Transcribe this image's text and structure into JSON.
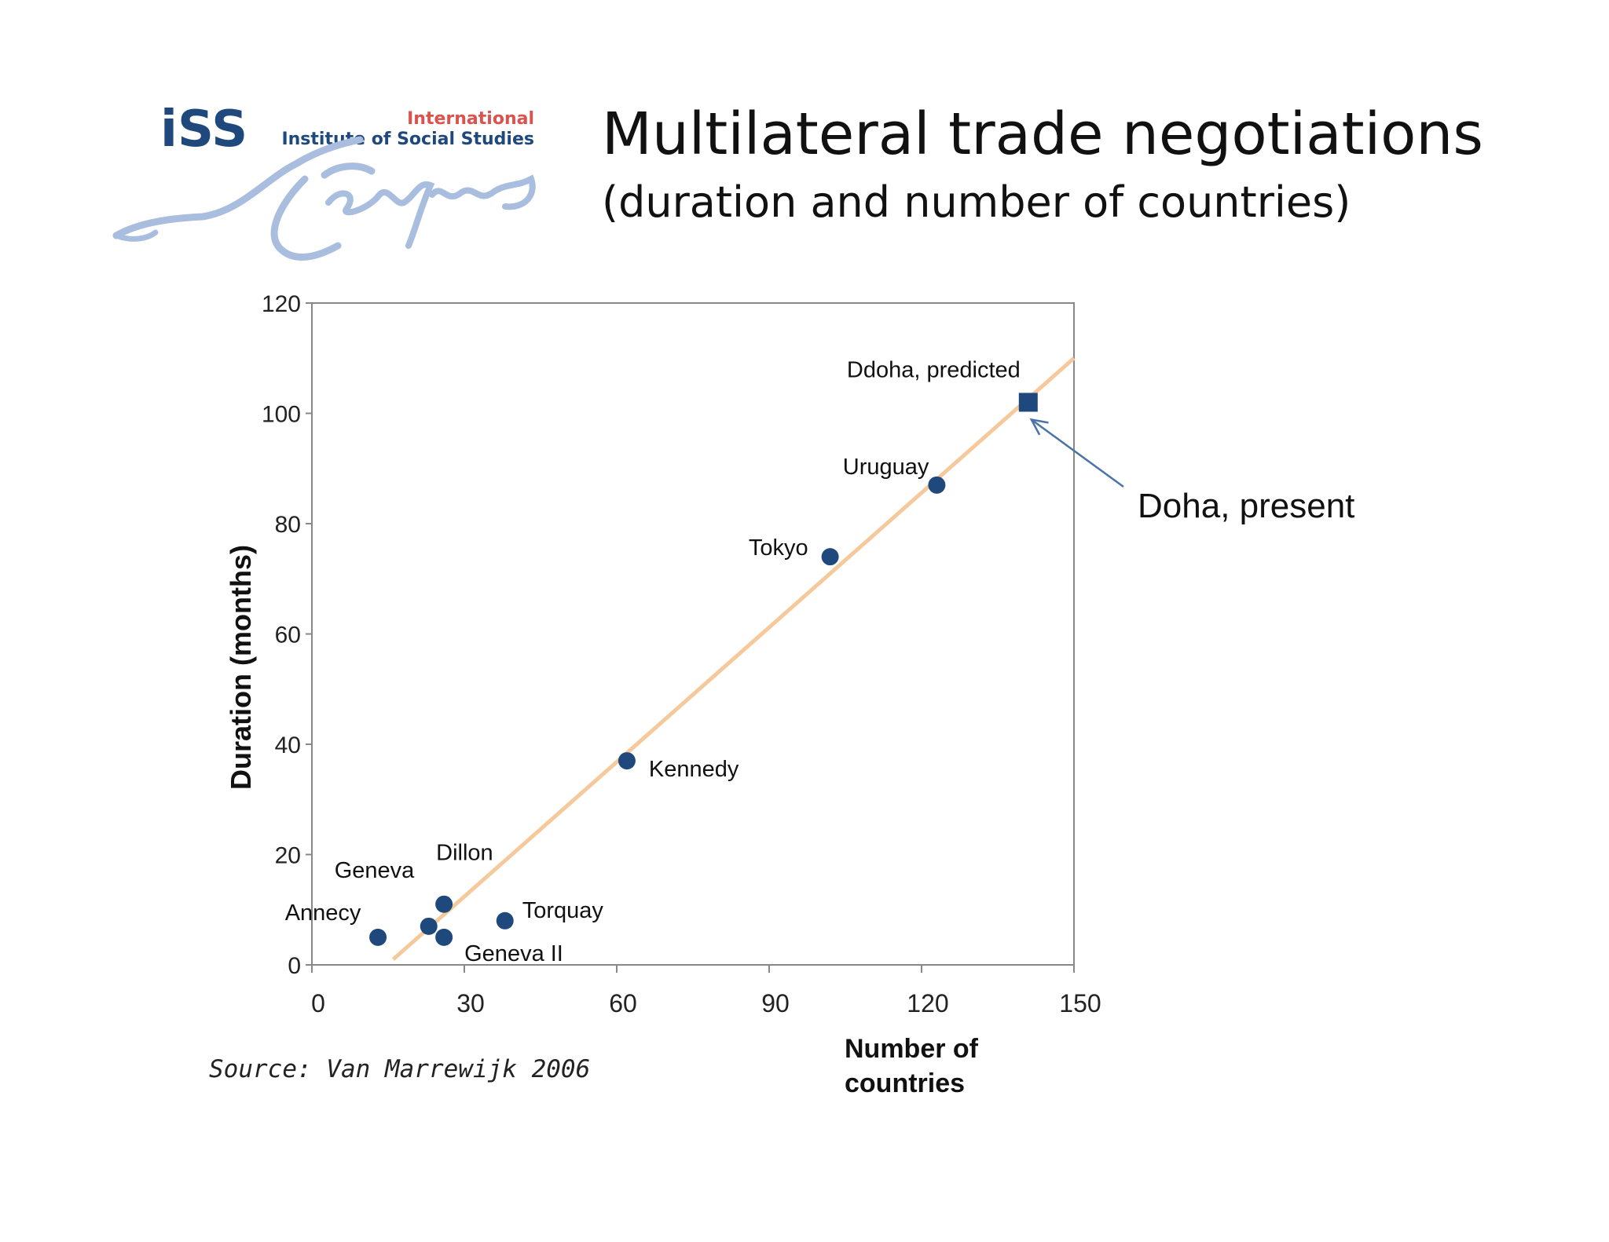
{
  "header": {
    "title": "Multilateral trade negotiations",
    "subtitle": "(duration and number of countries)"
  },
  "logo": {
    "text_iss": "iSS",
    "text_international": "International",
    "text_institute": "Institute of Social Studies",
    "icon": "erasmus-signature-logo"
  },
  "source": "Source: Van Marrewijk 2006",
  "annotation": "Doha, present",
  "colors": {
    "points": "#1f497d",
    "trendline": "#f5c99b",
    "arrow": "#4a74a8",
    "axis": "#888888"
  },
  "chart_data": {
    "type": "scatter",
    "title": "Multilateral trade negotiations",
    "xlabel": "Number of countries",
    "ylabel": "Duration (months)",
    "xlim": [
      0,
      150
    ],
    "ylim": [
      0,
      120
    ],
    "xticks": [
      0,
      30,
      60,
      90,
      120,
      150
    ],
    "yticks": [
      0,
      20,
      40,
      60,
      80,
      100,
      120
    ],
    "grid": false,
    "points": [
      {
        "label": "Annecy",
        "x": 13,
        "y": 5,
        "marker": "circle"
      },
      {
        "label": "Geneva",
        "x": 23,
        "y": 7,
        "marker": "circle"
      },
      {
        "label": "Dillon",
        "x": 26,
        "y": 11,
        "marker": "circle"
      },
      {
        "label": "Geneva II",
        "x": 26,
        "y": 5,
        "marker": "circle"
      },
      {
        "label": "Torquay",
        "x": 38,
        "y": 8,
        "marker": "circle"
      },
      {
        "label": "Kennedy",
        "x": 62,
        "y": 37,
        "marker": "circle"
      },
      {
        "label": "Tokyo",
        "x": 102,
        "y": 74,
        "marker": "circle"
      },
      {
        "label": "Uruguay",
        "x": 123,
        "y": 87,
        "marker": "circle"
      },
      {
        "label": "Ddoha, predicted",
        "x": 141,
        "y": 102,
        "marker": "square"
      }
    ],
    "trendline": {
      "x": [
        16,
        150
      ],
      "y": [
        1,
        110
      ]
    },
    "annotations": [
      {
        "text": "Doha, present",
        "points_to": "Ddoha, predicted"
      }
    ]
  }
}
